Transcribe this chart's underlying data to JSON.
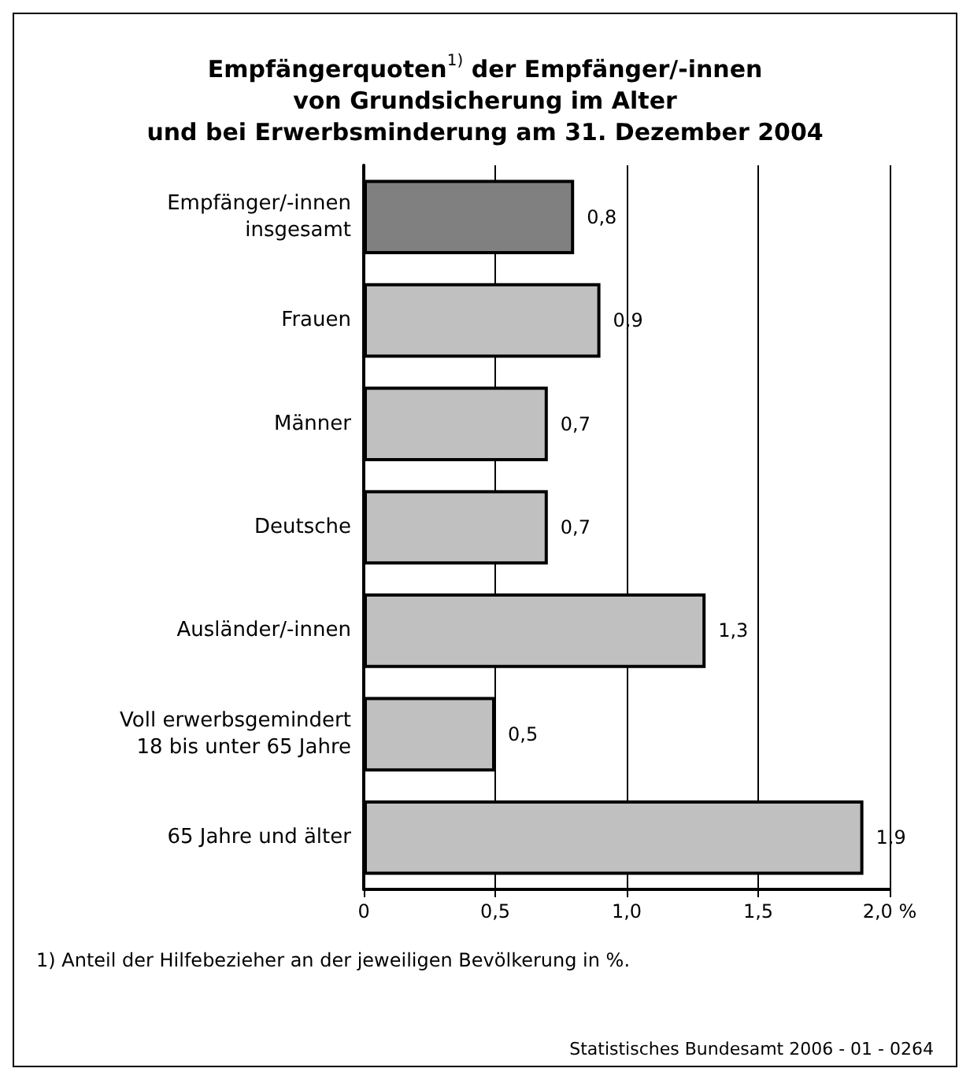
{
  "chart_data": {
    "type": "bar",
    "orientation": "horizontal",
    "title": "Empfängerquoten$^{1)}$ der Empfänger/-innen\nvon Grundsicherung im Alter\nund bei Erwerbsminderung am 31. Dezember 2004",
    "categories": [
      "Empfänger/-innen\ninsgesamt",
      "Frauen",
      "Männer",
      "Deutsche",
      "Ausländer/-innen",
      "Voll erwerbsgemindert\n18 bis unter 65 Jahre",
      "65 Jahre und älter"
    ],
    "values": [
      0.8,
      0.9,
      0.7,
      0.7,
      1.3,
      0.5,
      1.9
    ],
    "colors": [
      "#808080",
      "#c0c0c0",
      "#c0c0c0",
      "#c0c0c0",
      "#c0c0c0",
      "#c0c0c0",
      "#c0c0c0"
    ],
    "value_labels": [
      "0,8",
      "0,9",
      "0,7",
      "0,7",
      "1,3",
      "0,5",
      "1,9"
    ],
    "xlim": [
      0,
      2
    ],
    "xticks": [
      0,
      {
        "value": 0.5,
        "label": "0,5"
      },
      {
        "value": 1,
        "label": "1,0"
      },
      {
        "value": 1.5,
        "label": "1,5"
      },
      {
        "value": 2,
        "label": "2,0 %"
      }
    ],
    "grid": "x",
    "annotations": [
      "1) Anteil der Hilfebezieher an der jeweiligen Bevölkerung in %.",
      "Statistisches Bundesamt 2006 - 01 - 0264"
    ]
  }
}
